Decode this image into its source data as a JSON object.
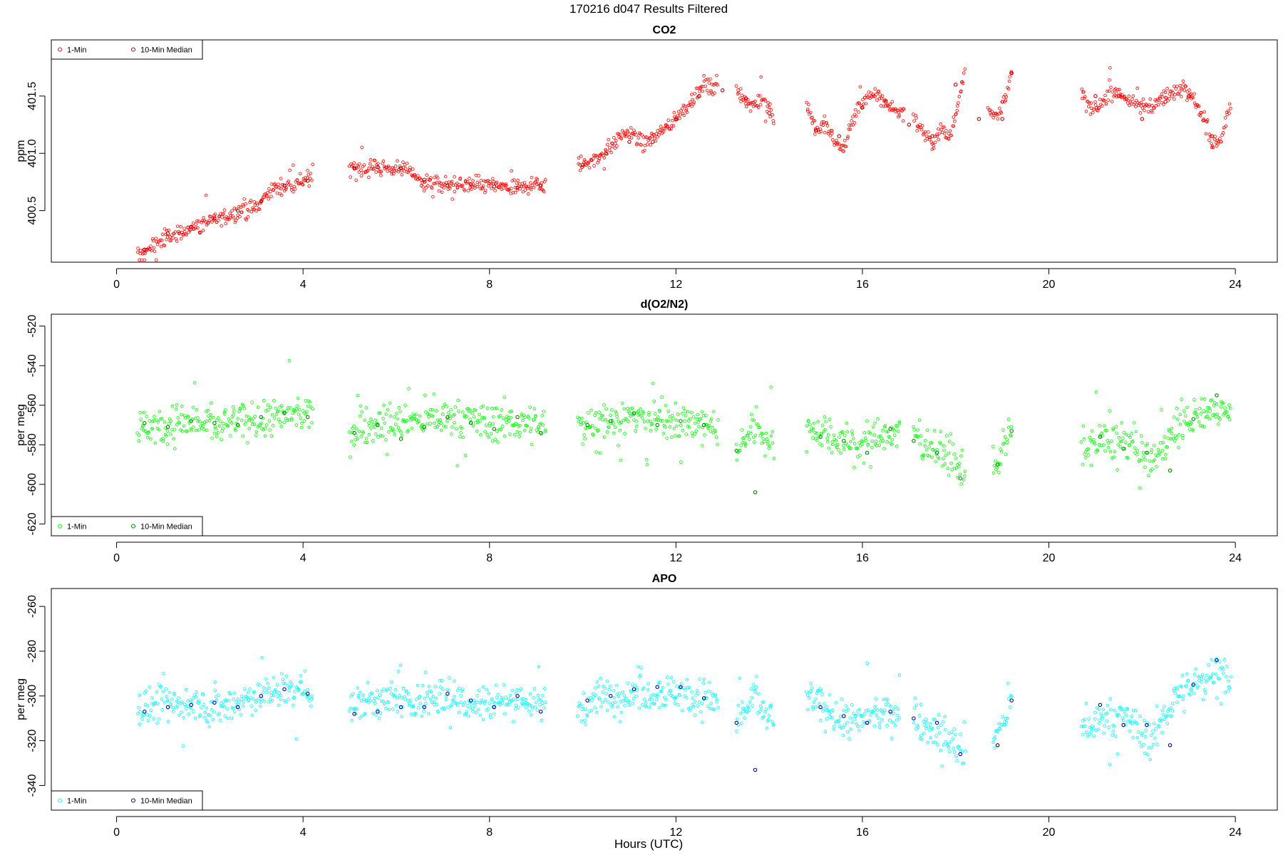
{
  "figure": {
    "title": "170216   d047   Results Filtered",
    "xlabel": "Hours (UTC)"
  },
  "chart_data": [
    {
      "type": "scatter",
      "title": "CO2",
      "ylabel": "ppm",
      "xlim": [
        -1.4,
        24.9
      ],
      "ylim": [
        400.05,
        401.99
      ],
      "xticks": [
        0,
        4,
        8,
        12,
        16,
        20,
        24
      ],
      "yticks": [
        400.5,
        401.0,
        401.5
      ],
      "ytick_labels": [
        "400.5",
        "401.0",
        "401.5"
      ],
      "legend": {
        "position": "top-left",
        "entries": [
          "1-Min",
          "10-Min Median"
        ]
      },
      "colors": {
        "one_min": "#ff0000",
        "median": "#b00000"
      },
      "one_min_segments": [
        {
          "x": [
            0.45,
            1.0,
            1.5,
            2.0,
            2.5,
            3.0,
            3.3,
            3.6,
            4.0,
            4.2
          ],
          "y": [
            400.1,
            400.25,
            400.33,
            400.41,
            400.47,
            400.53,
            400.68,
            400.72,
            400.76,
            400.75
          ]
        },
        {
          "x": [
            5.0,
            5.5,
            6.0,
            6.3,
            6.5,
            7.0,
            7.5,
            8.0,
            8.5,
            9.0,
            9.2
          ],
          "y": [
            400.87,
            400.88,
            400.87,
            400.86,
            400.76,
            400.72,
            400.72,
            400.73,
            400.68,
            400.73,
            400.71
          ]
        },
        {
          "x": [
            9.9,
            10.3,
            10.7,
            11.0,
            11.3,
            11.7,
            12.0,
            12.3,
            12.6,
            12.9
          ],
          "y": [
            400.9,
            400.95,
            401.1,
            401.2,
            401.08,
            401.2,
            401.3,
            401.45,
            401.6,
            401.55
          ]
        },
        {
          "x": [
            13.3,
            13.6,
            13.9,
            14.1
          ],
          "y": [
            401.58,
            401.4,
            401.5,
            401.3
          ]
        },
        {
          "x": [
            14.8,
            15.0,
            15.2,
            15.4,
            15.6,
            15.8,
            16.0,
            16.3,
            16.6,
            16.9
          ],
          "y": [
            401.45,
            401.2,
            401.25,
            401.1,
            401.05,
            401.3,
            401.45,
            401.52,
            401.4,
            401.35
          ]
        },
        {
          "x": [
            17.1,
            17.3,
            17.5,
            17.7,
            17.9,
            18.1,
            18.2
          ],
          "y": [
            401.3,
            401.2,
            401.1,
            401.2,
            401.15,
            401.55,
            401.75
          ]
        },
        {
          "x": [
            18.7,
            18.9,
            19.2
          ],
          "y": [
            401.4,
            401.3,
            401.7
          ]
        },
        {
          "x": [
            20.7,
            21.0,
            21.3,
            21.6,
            22.0,
            22.3,
            22.6,
            22.9,
            23.1,
            23.3,
            23.5,
            23.7,
            23.9
          ],
          "y": [
            401.5,
            401.35,
            401.55,
            401.5,
            401.4,
            401.45,
            401.5,
            401.6,
            401.5,
            401.3,
            401.1,
            401.15,
            401.45
          ]
        }
      ],
      "median_points": {
        "x": [
          0.6,
          1.1,
          1.6,
          2.1,
          2.6,
          3.1,
          3.6,
          4.1,
          5.1,
          5.6,
          6.1,
          6.6,
          7.1,
          7.6,
          8.1,
          8.6,
          9.1,
          10.0,
          10.5,
          11.0,
          11.5,
          12.0,
          12.5,
          13.0,
          13.5,
          14.0,
          15.0,
          15.5,
          16.0,
          16.5,
          17.0,
          17.5,
          18.0,
          18.5,
          19.0,
          19.2,
          21.0,
          21.5,
          22.0,
          22.5,
          23.0,
          23.5
        ],
        "y": [
          400.16,
          400.3,
          400.36,
          400.43,
          400.5,
          400.58,
          400.72,
          400.76,
          400.87,
          400.88,
          400.87,
          400.77,
          400.72,
          400.73,
          400.71,
          400.7,
          400.72,
          400.9,
          401.0,
          401.1,
          401.1,
          401.3,
          401.5,
          401.55,
          401.48,
          401.35,
          401.2,
          401.15,
          401.4,
          401.45,
          401.25,
          401.15,
          401.6,
          401.3,
          401.3,
          401.7,
          401.5,
          401.5,
          401.3,
          401.45,
          401.5,
          401.15
        ]
      }
    },
    {
      "type": "scatter",
      "title": "d(O2/N2)",
      "ylabel": "per meg",
      "xlim": [
        -1.4,
        24.9
      ],
      "ylim": [
        -626,
        -514
      ],
      "xticks": [
        0,
        4,
        8,
        12,
        16,
        20,
        24
      ],
      "yticks": [
        -620,
        -600,
        -580,
        -560,
        -540,
        -520
      ],
      "ytick_labels": [
        "-620",
        "-600",
        "-580",
        "-560",
        "-540",
        "-520"
      ],
      "legend": {
        "position": "bottom-left",
        "entries": [
          "1-Min",
          "10-Min Median"
        ]
      },
      "colors": {
        "one_min": "#00ff00",
        "median": "#008000"
      },
      "one_min_segments": [
        {
          "x": [
            0.45,
            1.0,
            1.5,
            2.0,
            2.5,
            3.0,
            3.5,
            4.0,
            4.2
          ],
          "y": [
            -571,
            -570,
            -568,
            -570,
            -569,
            -568,
            -566,
            -565,
            -564
          ]
        },
        {
          "x": [
            5.0,
            5.5,
            6.0,
            6.5,
            7.0,
            7.5,
            8.0,
            8.5,
            9.0,
            9.2
          ],
          "y": [
            -572,
            -570,
            -569,
            -568,
            -567,
            -568,
            -569,
            -568,
            -570,
            -572
          ]
        },
        {
          "x": [
            9.9,
            10.5,
            11.0,
            11.5,
            12.0,
            12.5,
            12.9
          ],
          "y": [
            -570,
            -567,
            -566,
            -567,
            -568,
            -570,
            -571
          ]
        },
        {
          "x": [
            13.3,
            13.7,
            14.1
          ],
          "y": [
            -583,
            -570,
            -580
          ]
        },
        {
          "x": [
            14.8,
            15.3,
            15.8,
            16.3,
            16.8
          ],
          "y": [
            -571,
            -575,
            -580,
            -577,
            -574
          ]
        },
        {
          "x": [
            17.1,
            17.5,
            17.9,
            18.2
          ],
          "y": [
            -575,
            -580,
            -587,
            -595
          ]
        },
        {
          "x": [
            18.8,
            19.2
          ],
          "y": [
            -590,
            -574
          ]
        },
        {
          "x": [
            20.7,
            21.2,
            21.7,
            22.2,
            22.7,
            23.2,
            23.6,
            23.9
          ],
          "y": [
            -583,
            -577,
            -578,
            -590,
            -571,
            -566,
            -561,
            -562
          ]
        }
      ],
      "median_points": {
        "x": [
          0.6,
          1.1,
          1.6,
          2.1,
          2.6,
          3.1,
          3.6,
          4.1,
          5.1,
          5.6,
          6.1,
          6.6,
          7.1,
          7.6,
          8.1,
          8.6,
          9.1,
          10.1,
          10.6,
          11.1,
          11.6,
          12.1,
          12.6,
          13.3,
          13.7,
          15.1,
          15.6,
          16.1,
          16.6,
          17.1,
          17.6,
          18.1,
          18.9,
          19.2,
          21.1,
          21.6,
          22.1,
          22.6,
          23.1,
          23.6
        ],
        "y": [
          -569,
          -571,
          -568,
          -569,
          -570,
          -566,
          -564,
          -566,
          -574,
          -570,
          -577,
          -571,
          -566,
          -569,
          -572,
          -566,
          -574,
          -570,
          -568,
          -564,
          -570,
          -568,
          -570,
          -583,
          -604,
          -576,
          -578,
          -584,
          -572,
          -578,
          -584,
          -597,
          -590,
          -573,
          -576,
          -582,
          -584,
          -593,
          -567,
          -555
        ]
      }
    },
    {
      "type": "scatter",
      "title": "APO",
      "ylabel": "per meg",
      "xlim": [
        -1.4,
        24.9
      ],
      "ylim": [
        -351,
        -252
      ],
      "xticks": [
        0,
        4,
        8,
        12,
        16,
        20,
        24
      ],
      "yticks": [
        -340,
        -320,
        -300,
        -280,
        -260
      ],
      "ytick_labels": [
        "-340",
        "-320",
        "-300",
        "-280",
        "-260"
      ],
      "legend": {
        "position": "bottom-left",
        "entries": [
          "1-Min",
          "10-Min Median"
        ]
      },
      "colors": {
        "one_min": "#00ffff",
        "median": "#00008b"
      },
      "one_min_segments": [
        {
          "x": [
            0.45,
            1.0,
            1.5,
            2.0,
            2.5,
            3.0,
            3.5,
            4.0,
            4.2
          ],
          "y": [
            -306,
            -303,
            -303,
            -305,
            -303,
            -300,
            -298,
            -297,
            -298
          ]
        },
        {
          "x": [
            5.0,
            5.5,
            6.0,
            6.5,
            7.0,
            7.5,
            8.0,
            8.5,
            9.0,
            9.2
          ],
          "y": [
            -304,
            -302,
            -302,
            -302,
            -300,
            -302,
            -303,
            -301,
            -303,
            -305
          ]
        },
        {
          "x": [
            9.9,
            10.5,
            11.0,
            11.5,
            12.0,
            12.5,
            12.9
          ],
          "y": [
            -305,
            -300,
            -299,
            -298,
            -298,
            -300,
            -302
          ]
        },
        {
          "x": [
            13.3,
            13.7,
            14.1
          ],
          "y": [
            -312,
            -300,
            -312
          ]
        },
        {
          "x": [
            14.8,
            15.3,
            15.8,
            16.3,
            16.8
          ],
          "y": [
            -300,
            -308,
            -312,
            -309,
            -305
          ]
        },
        {
          "x": [
            17.1,
            17.5,
            17.9,
            18.2
          ],
          "y": [
            -310,
            -315,
            -320,
            -327
          ]
        },
        {
          "x": [
            18.8,
            19.2
          ],
          "y": [
            -322,
            -302
          ]
        },
        {
          "x": [
            20.7,
            21.2,
            21.7,
            22.2,
            22.7,
            23.2,
            23.6,
            23.9
          ],
          "y": [
            -316,
            -310,
            -311,
            -320,
            -300,
            -295,
            -287,
            -293
          ]
        }
      ],
      "median_points": {
        "x": [
          0.6,
          1.1,
          1.6,
          2.1,
          2.6,
          3.1,
          3.6,
          4.1,
          5.1,
          5.6,
          6.1,
          6.6,
          7.1,
          7.6,
          8.1,
          8.6,
          9.1,
          10.1,
          10.6,
          11.1,
          11.6,
          12.1,
          12.6,
          13.3,
          13.7,
          15.1,
          15.6,
          16.1,
          16.6,
          17.1,
          17.6,
          18.1,
          18.9,
          19.2,
          21.1,
          21.6,
          22.1,
          22.6,
          23.1,
          23.6
        ],
        "y": [
          -307,
          -305,
          -304,
          -303,
          -305,
          -300,
          -297,
          -299,
          -308,
          -307,
          -305,
          -305,
          -299,
          -302,
          -305,
          -300,
          -307,
          -302,
          -300,
          -297,
          -296,
          -296,
          -301,
          -312,
          -333,
          -305,
          -309,
          -312,
          -307,
          -310,
          -312,
          -326,
          -322,
          -302,
          -304,
          -313,
          -313,
          -322,
          -295,
          -284
        ]
      }
    }
  ]
}
